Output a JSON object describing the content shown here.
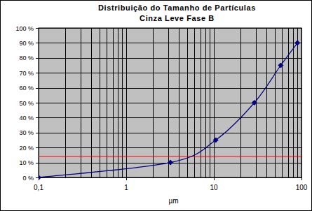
{
  "chart_data": {
    "type": "line",
    "title": "Distribuição do Tamanho de Partículas",
    "subtitle": "Cinza Leve Fase B",
    "x_label": "µm",
    "x": [
      0.1,
      3.2,
      10.5,
      29,
      58,
      90
    ],
    "values": [
      0,
      10,
      25,
      50,
      75,
      90
    ],
    "color": "#000080",
    "marker": "diamond",
    "line_style": "smooth",
    "log": "x",
    "grid": true,
    "xlim": [
      0.1,
      100
    ],
    "xticks": [
      {
        "value": 0.1,
        "label": "0,1"
      },
      1,
      10,
      100
    ],
    "ylim": [
      0,
      100
    ],
    "yticks": [
      {
        "value": 0,
        "label": "0 %"
      },
      {
        "value": 10,
        "label": "10 %"
      },
      {
        "value": 20,
        "label": "20 %"
      },
      {
        "value": 30,
        "label": "30 %"
      },
      {
        "value": 40,
        "label": "40 %"
      },
      {
        "value": 50,
        "label": "50 %"
      },
      {
        "value": 60,
        "label": "60 %"
      },
      {
        "value": 70,
        "label": "70 %"
      },
      {
        "value": 80,
        "label": "80 %"
      },
      {
        "value": 90,
        "label": "90 %"
      },
      {
        "value": 100,
        "label": "100 %"
      }
    ],
    "reference_line": {
      "value": 14,
      "color": "#ff0000"
    }
  }
}
